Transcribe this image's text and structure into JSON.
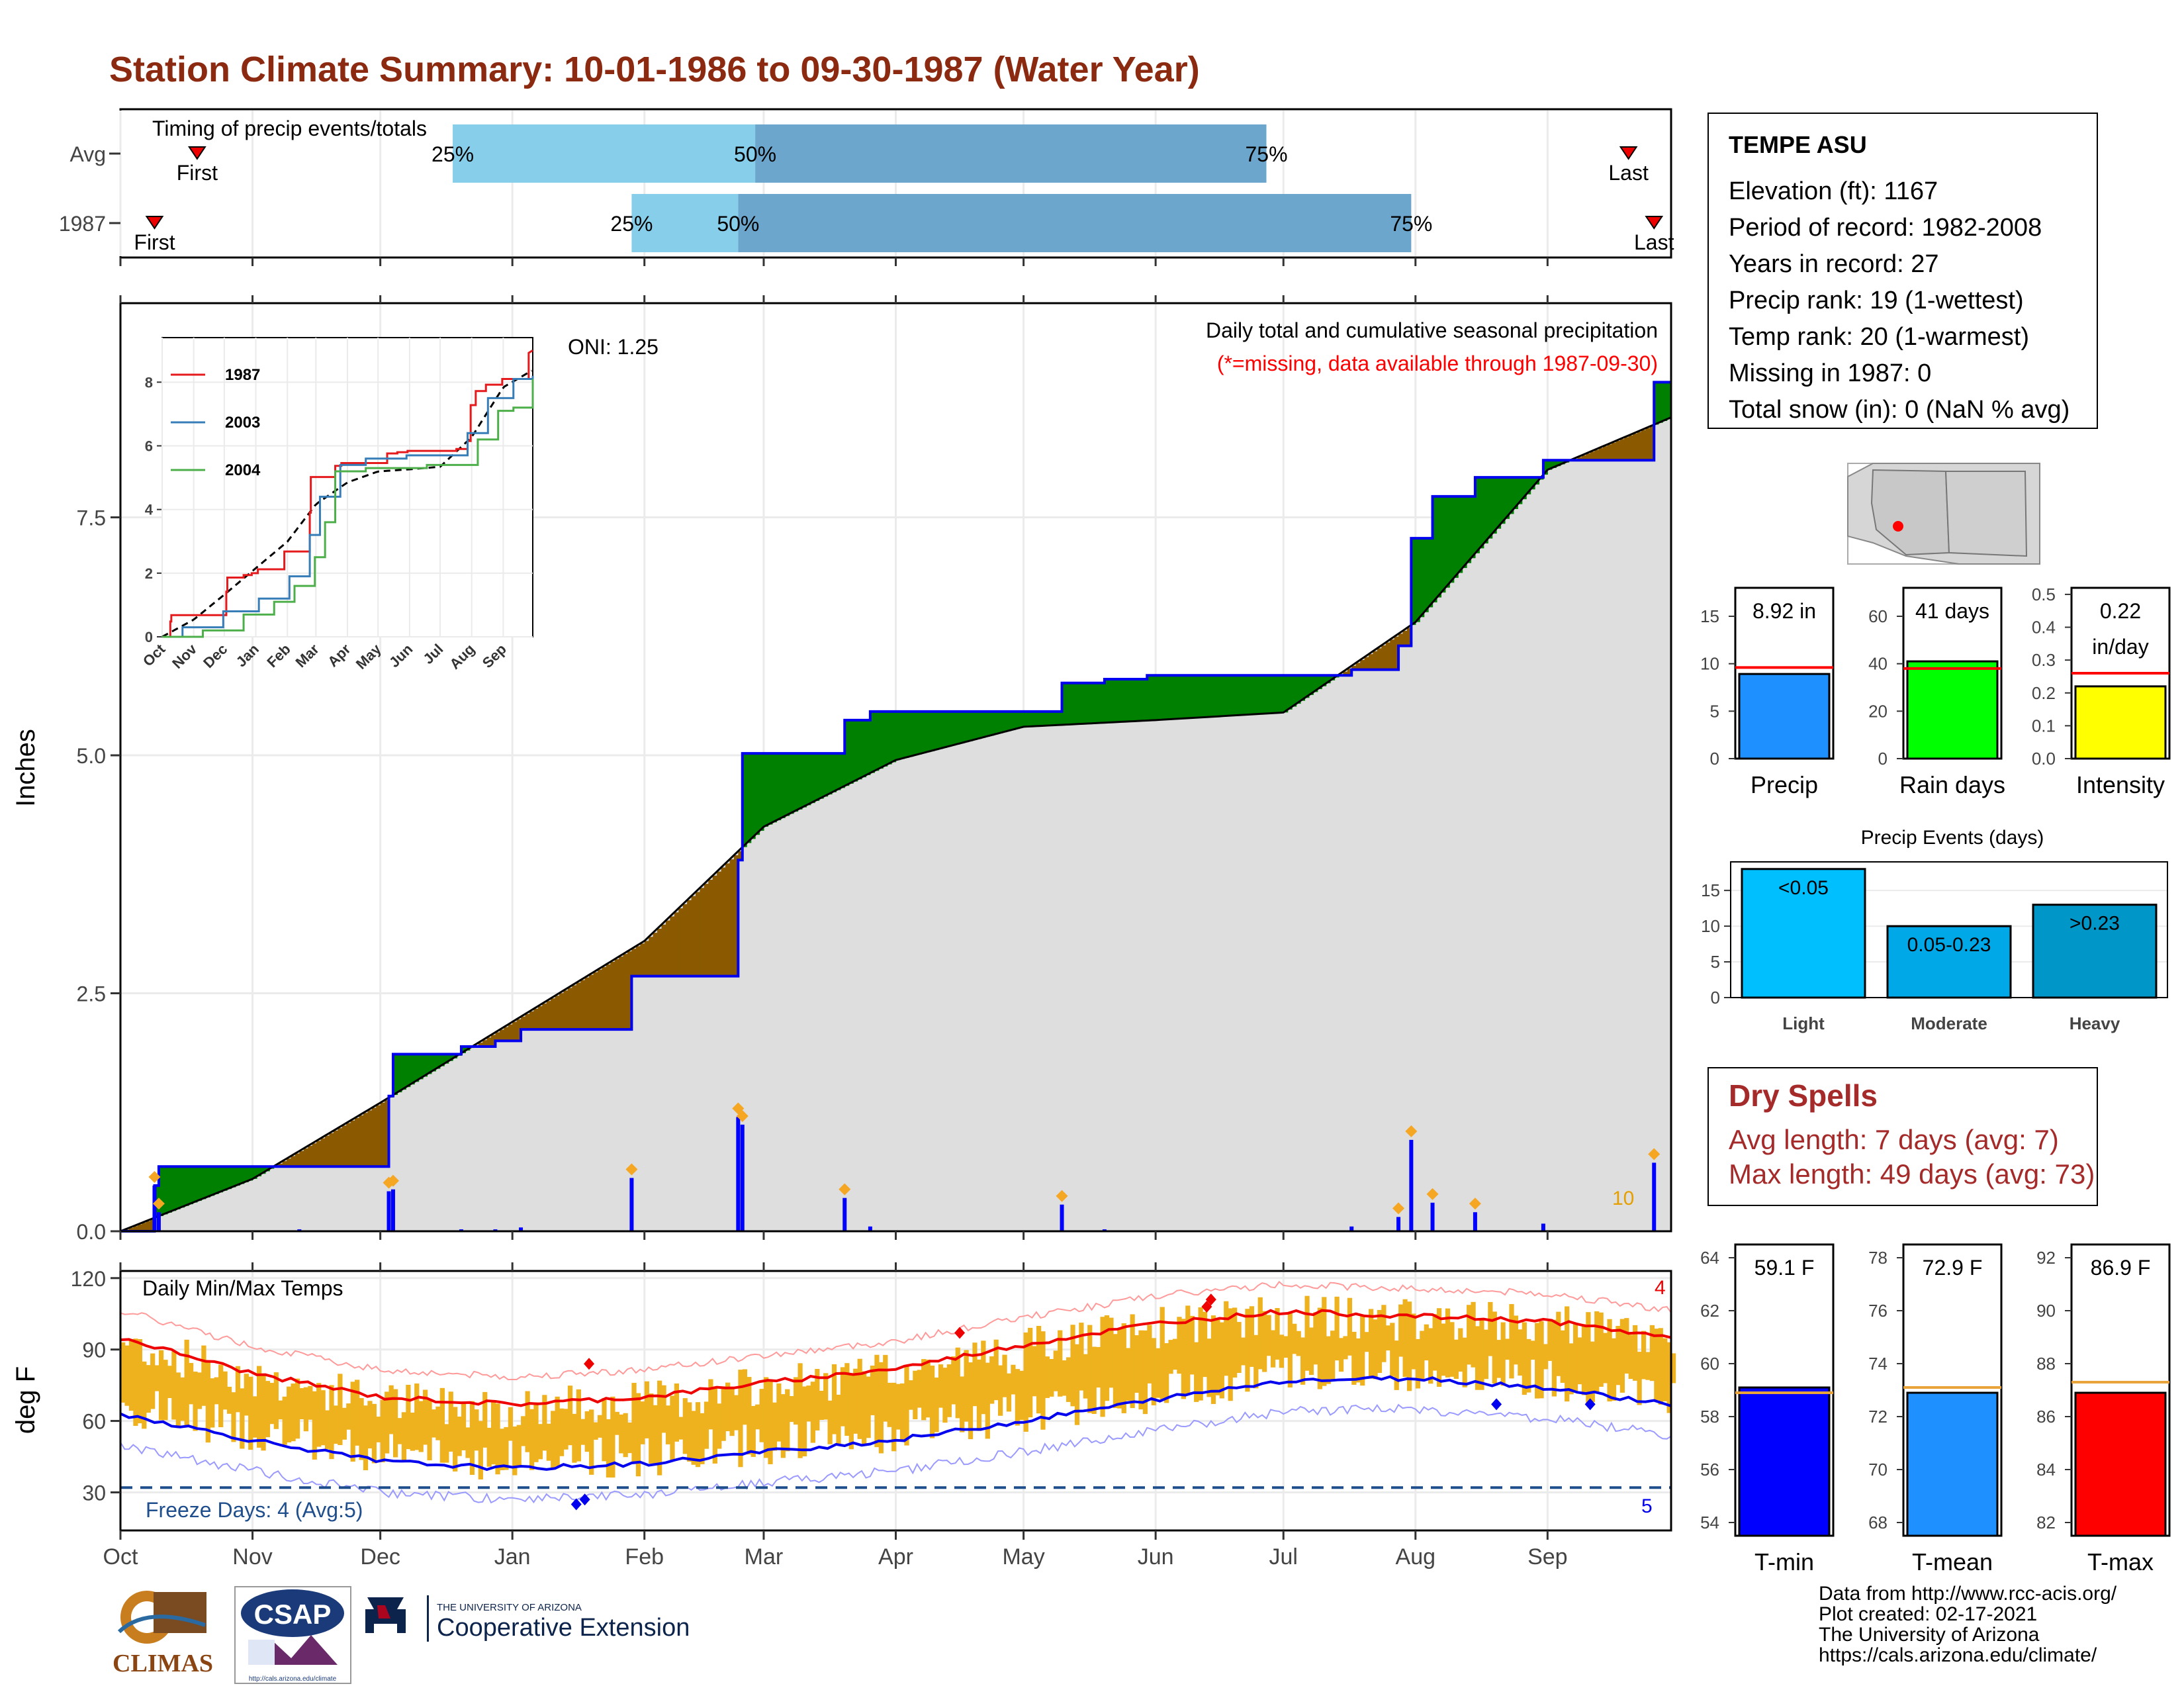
{
  "title": "Station Climate Summary: 10-01-1986 to 09-30-1987 (Water Year)",
  "colors": {
    "title": "#8b2a10",
    "wet": "#008000",
    "dry": "#8b5a00",
    "avg_fill": "#dedede",
    "bars": "#0000ff",
    "tmin_line": "#0000ee",
    "tmax_line": "#ee0000",
    "range_bar": "#efb21f",
    "dry_spell_text": "#a52a2a"
  },
  "timing": {
    "title": "Timing of precip events/totals",
    "rows": [
      {
        "label": "Avg",
        "first": "1986-10-19",
        "p25": "1986-12-18",
        "p50": "1987-02-27",
        "p75": "1987-06-27",
        "last": "1987-09-20",
        "first_label": "First",
        "last_label": "Last",
        "p25_label": "25%",
        "p50_label": "50%",
        "p75_label": "75%"
      },
      {
        "label": "1987",
        "first": "1986-10-09",
        "p25": "1987-01-29",
        "p50": "1987-02-23",
        "p75": "1987-07-31",
        "last": "1987-09-26",
        "first_label": "First",
        "last_label": "Last",
        "p25_label": "25%",
        "p50_label": "50%",
        "p75_label": "75%"
      }
    ]
  },
  "precip_panel": {
    "ylabel": "Inches",
    "yticks": [
      "0.0",
      "2.5",
      "5.0",
      "7.5"
    ],
    "ylim": [
      0,
      9.75
    ],
    "subtitle": "Daily total and cumulative seasonal precipitation",
    "missing_note": "(*=missing, data available through 1987-09-30)",
    "oni": "ONI: 1.25",
    "event_count_label": "10"
  },
  "inset": {
    "yticks": [
      "0",
      "2",
      "4",
      "6",
      "8"
    ],
    "xticks": [
      "Oct",
      "Nov",
      "Dec",
      "Jan",
      "Feb",
      "Mar",
      "Apr",
      "May",
      "Jun",
      "Jul",
      "Aug",
      "Sep"
    ],
    "legend": [
      {
        "name": "1987",
        "color": "#e41a1c"
      },
      {
        "name": "2003",
        "color": "#377eb8"
      },
      {
        "name": "2004",
        "color": "#4daf4a"
      }
    ]
  },
  "temp_panel": {
    "ylabel": "deg F",
    "yticks": [
      "30",
      "60",
      "90",
      "120"
    ],
    "title": "Daily Min/Max Temps",
    "freeze_label": "Freeze Days: 4 (Avg:5)",
    "count_top": "4",
    "count_bottom": "5"
  },
  "months": [
    "Oct",
    "Nov",
    "Dec",
    "Jan",
    "Feb",
    "Mar",
    "Apr",
    "May",
    "Jun",
    "Jul",
    "Aug",
    "Sep"
  ],
  "station": {
    "name": "TEMPE ASU",
    "lines": [
      "Elevation (ft): 1167",
      "Period of record: 1982-2008",
      "Years in record: 27",
      "Precip rank: 19 (1-wettest)",
      "Temp rank: 20 (1-warmest)",
      "Missing in 1987: 0",
      "Total snow (in): 0 (NaN % avg)"
    ]
  },
  "precip_bars": [
    {
      "label": "Precip",
      "value_label": "8.92 in",
      "value": 8.92,
      "avg": 9.6,
      "ylim": [
        0,
        18
      ],
      "yticks": [
        "0",
        "5",
        "10",
        "15"
      ],
      "tickvals": [
        0,
        5,
        10,
        15
      ],
      "color": "#1e90ff"
    },
    {
      "label": "Rain days",
      "value_label": "41 days",
      "value": 41,
      "avg": 38,
      "ylim": [
        0,
        72
      ],
      "yticks": [
        "0",
        "20",
        "40",
        "60"
      ],
      "tickvals": [
        0,
        20,
        40,
        60
      ],
      "color": "#00ff00"
    },
    {
      "label": "Intensity",
      "value_label": "0.22\nin/day",
      "value": 0.22,
      "avg": 0.26,
      "ylim": [
        0,
        0.52
      ],
      "yticks": [
        "0.0",
        "0.1",
        "0.2",
        "0.3",
        "0.4",
        "0.5"
      ],
      "tickvals": [
        0,
        0.1,
        0.2,
        0.3,
        0.4,
        0.5
      ],
      "color": "#ffff00"
    }
  ],
  "events_chart": {
    "title": "Precip Events (days)",
    "categories": [
      "Light",
      "Moderate",
      "Heavy"
    ],
    "value_labels": [
      "<0.05",
      "0.05-0.23",
      ">0.23"
    ],
    "values": [
      18,
      10,
      13
    ],
    "ylim": [
      0,
      19
    ],
    "yticks": [
      "0",
      "5",
      "10",
      "15"
    ],
    "colors": [
      "#00bfff",
      "#00a8e8",
      "#0096c8"
    ]
  },
  "dry_spells": {
    "title": "Dry Spells",
    "avg_length": "Avg length: 7 days (avg: 7)",
    "max_length": "Max length: 49 days (avg: 73)"
  },
  "temp_bars": [
    {
      "label": "T-min",
      "value_label": "59.1 F",
      "value": 59.1,
      "avg": 58.9,
      "ylim": [
        53.5,
        64.5
      ],
      "yticks": [
        "54",
        "56",
        "58",
        "60",
        "62",
        "64"
      ],
      "tickvals": [
        54,
        56,
        58,
        60,
        62,
        64
      ],
      "color": "#0000ff"
    },
    {
      "label": "T-mean",
      "value_label": "72.9 F",
      "value": 72.9,
      "avg": 73.1,
      "ylim": [
        67.5,
        78.5
      ],
      "yticks": [
        "68",
        "70",
        "72",
        "74",
        "76",
        "78"
      ],
      "tickvals": [
        68,
        70,
        72,
        74,
        76,
        78
      ],
      "color": "#1e90ff"
    },
    {
      "label": "T-max",
      "value_label": "86.9 F",
      "value": 86.9,
      "avg": 87.3,
      "ylim": [
        81.5,
        92.5
      ],
      "yticks": [
        "82",
        "84",
        "86",
        "88",
        "90",
        "92"
      ],
      "tickvals": [
        82,
        84,
        86,
        88,
        90,
        92
      ],
      "color": "#ff0000"
    }
  ],
  "credits": [
    "Data from http://www.rcc-acis.org/",
    "Plot created: 02-17-2021",
    "The University of Arizona",
    "https://cals.arizona.edu/climate/"
  ],
  "logos": {
    "climas": "CLIMAS",
    "csap": "CSAP",
    "csap_url": "http://cals.arizona.edu/climate",
    "ua_small": "THE UNIVERSITY OF ARIZONA",
    "ua_big": "Cooperative Extension"
  },
  "chart_data": [
    {
      "type": "area",
      "title": "Daily total and cumulative seasonal precipitation",
      "ylabel": "Inches",
      "ylim": [
        0,
        9.75
      ],
      "cumulative_1987": {
        "steps": [
          [
            "1986-10-09",
            0.48
          ],
          [
            "1986-10-10",
            0.68
          ],
          [
            "1986-12-03",
            1.42
          ],
          [
            "1986-12-04",
            1.86
          ],
          [
            "1986-12-20",
            1.94
          ],
          [
            "1986-12-28",
            2.0
          ],
          [
            "1987-01-03",
            2.12
          ],
          [
            "1987-01-29",
            2.68
          ],
          [
            "1987-02-23",
            3.9
          ],
          [
            "1987-02-24",
            5.02
          ],
          [
            "1987-03-20",
            5.37
          ],
          [
            "1987-03-26",
            5.46
          ],
          [
            "1987-05-10",
            5.76
          ],
          [
            "1987-05-20",
            5.8
          ],
          [
            "1987-05-30",
            5.84
          ],
          [
            "1987-07-17",
            5.9
          ],
          [
            "1987-07-28",
            6.15
          ],
          [
            "1987-07-31",
            7.28
          ],
          [
            "1987-08-05",
            7.72
          ],
          [
            "1987-08-15",
            7.92
          ],
          [
            "1987-08-31",
            8.1
          ],
          [
            "1987-09-26",
            8.92
          ]
        ],
        "total": 8.92
      },
      "average_cumulative": [
        [
          "10-01",
          0.0
        ],
        [
          "11-01",
          0.55
        ],
        [
          "12-01",
          1.35
        ],
        [
          "01-01",
          2.2
        ],
        [
          "02-01",
          3.05
        ],
        [
          "03-01",
          4.25
        ],
        [
          "04-01",
          4.95
        ],
        [
          "05-01",
          5.3
        ],
        [
          "06-01",
          5.37
        ],
        [
          "07-01",
          5.45
        ],
        [
          "08-01",
          6.4
        ],
        [
          "09-01",
          8.0
        ],
        [
          "09-30",
          8.55
        ]
      ],
      "daily_precip": [
        [
          "1986-10-09",
          0.48
        ],
        [
          "1986-10-10",
          0.2
        ],
        [
          "1986-11-12",
          0.02
        ],
        [
          "1986-12-03",
          0.42
        ],
        [
          "1986-12-04",
          0.44
        ],
        [
          "1986-12-20",
          0.02
        ],
        [
          "1986-12-28",
          0.02
        ],
        [
          "1987-01-03",
          0.04
        ],
        [
          "1987-01-29",
          0.56
        ],
        [
          "1987-02-23",
          1.2
        ],
        [
          "1987-02-24",
          1.12
        ],
        [
          "1987-03-20",
          0.35
        ],
        [
          "1987-03-26",
          0.05
        ],
        [
          "1987-05-10",
          0.28
        ],
        [
          "1987-05-20",
          0.02
        ],
        [
          "1987-07-17",
          0.05
        ],
        [
          "1987-07-28",
          0.15
        ],
        [
          "1987-07-31",
          0.96
        ],
        [
          "1987-08-05",
          0.3
        ],
        [
          "1987-08-15",
          0.2
        ],
        [
          "1987-08-31",
          0.08
        ],
        [
          "1987-09-26",
          0.72
        ]
      ]
    },
    {
      "type": "line",
      "title": "Daily Min/Max Temps",
      "ylabel": "deg F",
      "ylim": [
        14,
        123
      ],
      "freeze_threshold": 32,
      "avg_tmax": [
        [
          "10-01",
          95
        ],
        [
          "11-01",
          80
        ],
        [
          "12-01",
          70
        ],
        [
          "01-01",
          67
        ],
        [
          "02-01",
          70
        ],
        [
          "03-01",
          76
        ],
        [
          "04-01",
          82
        ],
        [
          "05-01",
          92
        ],
        [
          "06-01",
          101
        ],
        [
          "07-01",
          106
        ],
        [
          "08-01",
          104
        ],
        [
          "09-01",
          102
        ],
        [
          "09-30",
          95
        ]
      ],
      "avg_tmin": [
        [
          "10-01",
          63
        ],
        [
          "11-01",
          52
        ],
        [
          "12-01",
          43
        ],
        [
          "01-01",
          40
        ],
        [
          "02-01",
          42
        ],
        [
          "03-01",
          47
        ],
        [
          "04-01",
          52
        ],
        [
          "05-01",
          60
        ],
        [
          "06-01",
          69
        ],
        [
          "07-01",
          77
        ],
        [
          "08-01",
          78
        ],
        [
          "09-01",
          74
        ],
        [
          "09-30",
          67
        ]
      ],
      "record_high_markers": [
        [
          "1987-01-19",
          84
        ],
        [
          "1987-04-16",
          97
        ],
        [
          "1987-06-13",
          108
        ],
        [
          "1987-06-14",
          111
        ]
      ],
      "record_low_markers": [
        [
          "1987-01-16",
          25
        ],
        [
          "1987-01-18",
          27
        ],
        [
          "1987-08-20",
          67
        ],
        [
          "1987-09-11",
          67
        ]
      ]
    }
  ]
}
